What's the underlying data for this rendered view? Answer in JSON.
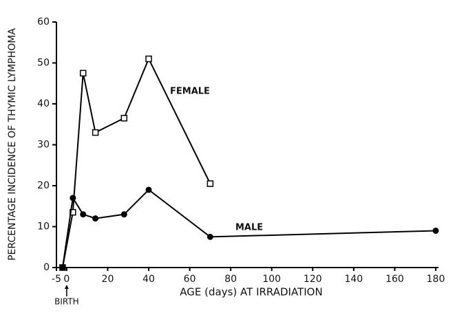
{
  "chart_data": {
    "type": "line",
    "y_label": "PERCENTAGE INCIDENCE OF THYMIC LYMPHOMA",
    "x_label": "AGE (days) AT IRRADIATION",
    "annotations": [
      "FEMALE",
      "MALE",
      "BIRTH"
    ],
    "x": [
      -2,
      3,
      8,
      14,
      28,
      40,
      70,
      180
    ],
    "series": [
      {
        "name": "FEMALE",
        "color": "#000000",
        "marker": "square",
        "values": [
          0,
          13.5,
          47.5,
          33,
          36.5,
          51,
          20.5,
          null
        ]
      },
      {
        "name": "MALE",
        "color": "#000000",
        "marker": "circle",
        "values": [
          0,
          17,
          13,
          12,
          13,
          19,
          7.5,
          9
        ]
      }
    ],
    "xlim": [
      -5,
      180
    ],
    "xticks": [
      -5,
      0,
      20,
      40,
      60,
      80,
      100,
      120,
      140,
      160,
      180
    ],
    "ylim": [
      0,
      60
    ],
    "yticks": [
      0,
      10,
      20,
      30,
      40,
      50,
      60
    ],
    "grid": false
  }
}
